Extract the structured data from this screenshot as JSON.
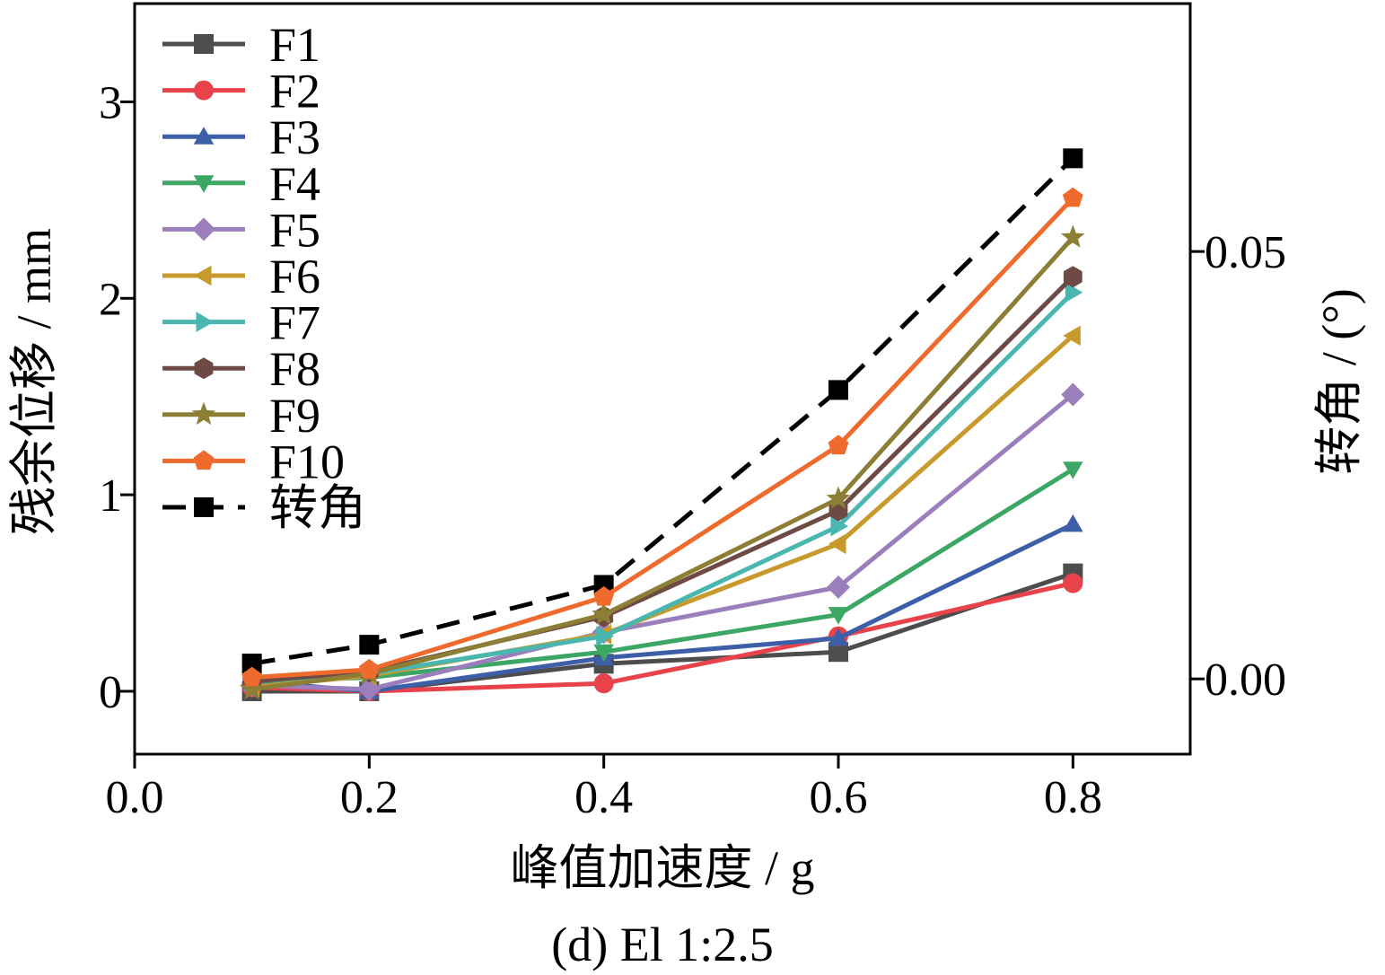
{
  "chart_data": {
    "type": "line",
    "caption": "(d) El 1:2.5",
    "xlabel": "峰值加速度 / g",
    "ylabel": "残余位移 / mm",
    "y2label": "转角 / (°)",
    "xlim": [
      0.0,
      0.9
    ],
    "ylim": [
      -0.32,
      3.5
    ],
    "y2lim": [
      -0.0088,
      0.079
    ],
    "xticks": [
      "0.0",
      "0.2",
      "0.4",
      "0.6",
      "0.8"
    ],
    "xtick_values": [
      0.0,
      0.2,
      0.4,
      0.6,
      0.8
    ],
    "yticks": [
      "0",
      "1",
      "2",
      "3"
    ],
    "ytick_values": [
      0,
      1,
      2,
      3
    ],
    "y2ticks": [
      "0.00",
      "0.05"
    ],
    "y2tick_values": [
      0.0,
      0.05
    ],
    "x": [
      0.1,
      0.2,
      0.4,
      0.6,
      0.8
    ],
    "series": [
      {
        "name": "F1",
        "color": "#4d4d4d",
        "marker": "square",
        "values": [
          0.0,
          0.0,
          0.14,
          0.2,
          0.6
        ]
      },
      {
        "name": "F2",
        "color": "#e8424b",
        "marker": "circle",
        "values": [
          0.02,
          0.0,
          0.04,
          0.28,
          0.55
        ]
      },
      {
        "name": "F3",
        "color": "#3d5fa8",
        "marker": "triangle-up",
        "values": [
          0.05,
          0.0,
          0.17,
          0.27,
          0.85
        ]
      },
      {
        "name": "F4",
        "color": "#3ca664",
        "marker": "triangle-down",
        "values": [
          0.05,
          0.07,
          0.2,
          0.39,
          1.13
        ]
      },
      {
        "name": "F5",
        "color": "#9b7fbd",
        "marker": "diamond",
        "values": [
          0.03,
          0.01,
          0.3,
          0.53,
          1.51
        ]
      },
      {
        "name": "F6",
        "color": "#c89a2e",
        "marker": "triangle-left",
        "values": [
          0.02,
          0.08,
          0.29,
          0.75,
          1.81
        ]
      },
      {
        "name": "F7",
        "color": "#49b6b0",
        "marker": "triangle-right",
        "values": [
          0.05,
          0.09,
          0.28,
          0.84,
          2.03
        ]
      },
      {
        "name": "F8",
        "color": "#6e4a44",
        "marker": "hexagon",
        "values": [
          0.05,
          0.1,
          0.38,
          0.92,
          2.11
        ]
      },
      {
        "name": "F9",
        "color": "#8c7f35",
        "marker": "star",
        "values": [
          0.01,
          0.09,
          0.39,
          0.98,
          2.31
        ]
      },
      {
        "name": "F10",
        "color": "#ee6a2d",
        "marker": "pentagon",
        "values": [
          0.07,
          0.11,
          0.48,
          1.25,
          2.51
        ]
      }
    ],
    "secondary_series": [
      {
        "name": "转角",
        "color": "#000000",
        "marker": "square",
        "dash": true,
        "x": [
          0.1,
          0.2,
          0.4,
          0.6,
          0.8
        ],
        "values": [
          0.0018,
          0.004,
          0.011,
          0.0338,
          0.0609
        ]
      }
    ],
    "legend_position": "top-left",
    "grid": false
  }
}
